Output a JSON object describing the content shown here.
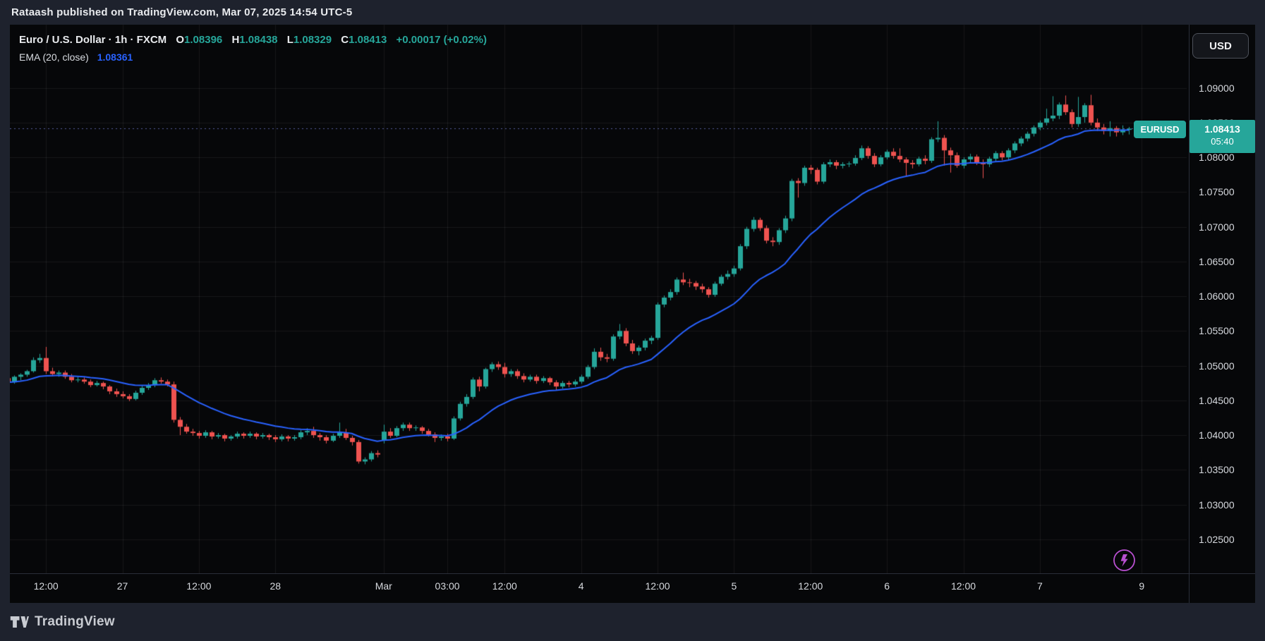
{
  "header": {
    "publish_text": "Rataash published on TradingView.com, Mar 07, 2025 14:54 UTC-5"
  },
  "legend": {
    "title": "Euro / U.S. Dollar · 1h · FXCM",
    "ohlc": {
      "o_label": "O",
      "o": "1.08396",
      "h_label": "H",
      "h": "1.08438",
      "l_label": "L",
      "l": "1.08329",
      "c_label": "C",
      "c": "1.08413",
      "change": "+0.00017 (+0.02%)"
    },
    "ema": {
      "label": "EMA (20, close)",
      "value": "1.08361"
    }
  },
  "price_axis": {
    "currency_button": "USD",
    "ticks": [
      "1.09000",
      "1.08500",
      "1.08000",
      "1.07500",
      "1.07000",
      "1.06500",
      "1.06000",
      "1.05500",
      "1.05000",
      "1.04500",
      "1.04000",
      "1.03500",
      "1.03000",
      "1.02500"
    ],
    "symbol_badge": "EURUSD",
    "last_price": "1.08413",
    "countdown": "05:40"
  },
  "time_axis": {
    "ticks": [
      {
        "label": "12:00",
        "bar": 6
      },
      {
        "label": "27",
        "bar": 18
      },
      {
        "label": "12:00",
        "bar": 30
      },
      {
        "label": "28",
        "bar": 42
      },
      {
        "label": "Mar",
        "bar": 59
      },
      {
        "label": "03:00",
        "bar": 69
      },
      {
        "label": "12:00",
        "bar": 78
      },
      {
        "label": "4",
        "bar": 90
      },
      {
        "label": "12:00",
        "bar": 102
      },
      {
        "label": "5",
        "bar": 114
      },
      {
        "label": "12:00",
        "bar": 126
      },
      {
        "label": "6",
        "bar": 138
      },
      {
        "label": "12:00",
        "bar": 150
      },
      {
        "label": "7",
        "bar": 162
      },
      {
        "label": "9",
        "bar": 178
      }
    ]
  },
  "footer": {
    "brand": "TradingView"
  },
  "colors": {
    "up": "#26a69a",
    "down": "#ef5350",
    "ema_line": "#2962ff",
    "grid": "rgba(255,255,255,0.07)",
    "price_line": "#5a5f9e",
    "badge": "#26a69a",
    "flash_icon": "#b84fd0"
  },
  "chart_data": {
    "type": "candlestick",
    "symbol": "EURUSD",
    "title": "Euro / U.S. Dollar",
    "interval": "1h",
    "exchange": "FXCM",
    "timezone": "UTC-5",
    "first_bar_time": "Feb 26 06:00",
    "last_bar_time": "Mar 7 14:00",
    "sessions": [
      "Feb 26 06:00-23:00",
      "Feb 27 00:00-23:00",
      "Feb 28 00:00-16:00",
      "Mar 2 17:00-23:00",
      "Mar 3 00:00-23:00",
      "Mar 4 00:00-23:00",
      "Mar 5 00:00-23:00",
      "Mar 6 00:00-23:00",
      "Mar 7 00:00-14:00"
    ],
    "visible_price_range": [
      1.0201,
      1.0991
    ],
    "price_grid_step": 0.005,
    "last_close": 1.08413,
    "ema_period": 20,
    "ema_last_value": 1.08361,
    "candles": [
      [
        1.0482,
        1.0485,
        1.0471,
        1.0476
      ],
      [
        1.0476,
        1.0486,
        1.0474,
        1.0484
      ],
      [
        1.0484,
        1.0489,
        1.0479,
        1.0487
      ],
      [
        1.0487,
        1.0494,
        1.0484,
        1.0492
      ],
      [
        1.0492,
        1.0512,
        1.049,
        1.0508
      ],
      [
        1.0508,
        1.0517,
        1.0504,
        1.0511
      ],
      [
        1.0511,
        1.0527,
        1.0488,
        1.0492
      ],
      [
        1.0492,
        1.0497,
        1.0485,
        1.0488
      ],
      [
        1.0488,
        1.0493,
        1.0484,
        1.049
      ],
      [
        1.049,
        1.0493,
        1.0481,
        1.0484
      ],
      [
        1.0484,
        1.0488,
        1.0476,
        1.0479
      ],
      [
        1.0479,
        1.0484,
        1.0476,
        1.048
      ],
      [
        1.048,
        1.0483,
        1.0474,
        1.0477
      ],
      [
        1.0477,
        1.048,
        1.0469,
        1.0472
      ],
      [
        1.0472,
        1.0478,
        1.047,
        1.0475
      ],
      [
        1.0475,
        1.0477,
        1.0466,
        1.047
      ],
      [
        1.047,
        1.0472,
        1.0459,
        1.0463
      ],
      [
        1.0463,
        1.0467,
        1.0455,
        1.0459
      ],
      [
        1.0459,
        1.0463,
        1.0453,
        1.0456
      ],
      [
        1.0456,
        1.0459,
        1.0449,
        1.0452
      ],
      [
        1.0452,
        1.0464,
        1.045,
        1.0461
      ],
      [
        1.0461,
        1.0471,
        1.0458,
        1.0468
      ],
      [
        1.0468,
        1.0475,
        1.0465,
        1.0472
      ],
      [
        1.0472,
        1.0482,
        1.0469,
        1.0479
      ],
      [
        1.0479,
        1.0483,
        1.0474,
        1.0477
      ],
      [
        1.0477,
        1.048,
        1.047,
        1.0473
      ],
      [
        1.0473,
        1.0477,
        1.0418,
        1.0422
      ],
      [
        1.0422,
        1.0426,
        1.04,
        1.0412
      ],
      [
        1.0412,
        1.0416,
        1.0402,
        1.0405
      ],
      [
        1.0405,
        1.0409,
        1.0399,
        1.0403
      ],
      [
        1.0403,
        1.0406,
        1.0395,
        1.0399
      ],
      [
        1.0399,
        1.0407,
        1.0396,
        1.0404
      ],
      [
        1.0404,
        1.0406,
        1.0394,
        1.0398
      ],
      [
        1.0398,
        1.0403,
        1.0395,
        1.04
      ],
      [
        1.04,
        1.0402,
        1.0391,
        1.0395
      ],
      [
        1.0395,
        1.04,
        1.0392,
        1.0398
      ],
      [
        1.0398,
        1.0405,
        1.0395,
        1.0402
      ],
      [
        1.0402,
        1.0404,
        1.0395,
        1.0399
      ],
      [
        1.0399,
        1.0405,
        1.0396,
        1.0402
      ],
      [
        1.0402,
        1.0404,
        1.0394,
        1.0398
      ],
      [
        1.0398,
        1.0403,
        1.0395,
        1.04
      ],
      [
        1.04,
        1.0402,
        1.0393,
        1.0397
      ],
      [
        1.0397,
        1.04,
        1.039,
        1.0394
      ],
      [
        1.0394,
        1.0401,
        1.0391,
        1.0398
      ],
      [
        1.0398,
        1.04,
        1.0391,
        1.0395
      ],
      [
        1.0395,
        1.04,
        1.0392,
        1.0397
      ],
      [
        1.0397,
        1.0407,
        1.0394,
        1.0404
      ],
      [
        1.0404,
        1.041,
        1.04,
        1.0406
      ],
      [
        1.0406,
        1.0412,
        1.0396,
        1.04
      ],
      [
        1.04,
        1.0403,
        1.0392,
        1.0397
      ],
      [
        1.0397,
        1.04,
        1.0388,
        1.0392
      ],
      [
        1.0392,
        1.0402,
        1.039,
        1.0399
      ],
      [
        1.0399,
        1.0418,
        1.0396,
        1.0404
      ],
      [
        1.0404,
        1.0409,
        1.0393,
        1.0396
      ],
      [
        1.0396,
        1.0399,
        1.0385,
        1.039
      ],
      [
        1.039,
        1.0393,
        1.0359,
        1.0362
      ],
      [
        1.0362,
        1.0368,
        1.0358,
        1.0365
      ],
      [
        1.0365,
        1.0377,
        1.0362,
        1.0374
      ],
      [
        1.0374,
        1.0378,
        1.0368,
        1.0372
      ],
      [
        1.0392,
        1.0415,
        1.0388,
        1.0405
      ],
      [
        1.0405,
        1.041,
        1.0396,
        1.0399
      ],
      [
        1.0399,
        1.0413,
        1.0397,
        1.041
      ],
      [
        1.041,
        1.0418,
        1.0406,
        1.0415
      ],
      [
        1.0415,
        1.0418,
        1.0406,
        1.041
      ],
      [
        1.041,
        1.0414,
        1.0406,
        1.0411
      ],
      [
        1.0411,
        1.0413,
        1.0402,
        1.0406
      ],
      [
        1.0406,
        1.0409,
        1.0398,
        1.0401
      ],
      [
        1.0401,
        1.0404,
        1.039,
        1.0396
      ],
      [
        1.0396,
        1.0401,
        1.0392,
        1.0398
      ],
      [
        1.0398,
        1.0402,
        1.0391,
        1.0395
      ],
      [
        1.0395,
        1.0427,
        1.0393,
        1.0424
      ],
      [
        1.0424,
        1.0448,
        1.0421,
        1.0445
      ],
      [
        1.0445,
        1.0459,
        1.0441,
        1.0455
      ],
      [
        1.0455,
        1.0483,
        1.0452,
        1.048
      ],
      [
        1.048,
        1.0484,
        1.0463,
        1.047
      ],
      [
        1.047,
        1.0497,
        1.0467,
        1.0495
      ],
      [
        1.0495,
        1.0505,
        1.0491,
        1.0502
      ],
      [
        1.0502,
        1.0506,
        1.0494,
        1.0498
      ],
      [
        1.0498,
        1.0504,
        1.0483,
        1.0488
      ],
      [
        1.0488,
        1.0495,
        1.0484,
        1.0492
      ],
      [
        1.0492,
        1.0495,
        1.0481,
        1.0485
      ],
      [
        1.0485,
        1.0489,
        1.0476,
        1.048
      ],
      [
        1.048,
        1.0487,
        1.0477,
        1.0484
      ],
      [
        1.0484,
        1.0487,
        1.0474,
        1.0478
      ],
      [
        1.0478,
        1.0485,
        1.0475,
        1.0482
      ],
      [
        1.0482,
        1.0484,
        1.0472,
        1.0476
      ],
      [
        1.0476,
        1.0479,
        1.0465,
        1.047
      ],
      [
        1.047,
        1.0478,
        1.0467,
        1.0475
      ],
      [
        1.0475,
        1.0478,
        1.0469,
        1.0473
      ],
      [
        1.0473,
        1.048,
        1.047,
        1.0477
      ],
      [
        1.0477,
        1.0487,
        1.0474,
        1.0484
      ],
      [
        1.0484,
        1.0501,
        1.0481,
        1.0498
      ],
      [
        1.0498,
        1.0525,
        1.0495,
        1.052
      ],
      [
        1.052,
        1.0526,
        1.0507,
        1.0512
      ],
      [
        1.0512,
        1.0517,
        1.0505,
        1.051
      ],
      [
        1.051,
        1.0545,
        1.0507,
        1.0542
      ],
      [
        1.0542,
        1.056,
        1.0538,
        1.055
      ],
      [
        1.055,
        1.0554,
        1.0528,
        1.0532
      ],
      [
        1.0532,
        1.0537,
        1.0517,
        1.0521
      ],
      [
        1.0521,
        1.0529,
        1.0515,
        1.0526
      ],
      [
        1.0526,
        1.0539,
        1.0522,
        1.0536
      ],
      [
        1.0536,
        1.0543,
        1.0531,
        1.054
      ],
      [
        1.054,
        1.0591,
        1.0537,
        1.0588
      ],
      [
        1.0588,
        1.0601,
        1.0584,
        1.0598
      ],
      [
        1.0598,
        1.061,
        1.0594,
        1.0606
      ],
      [
        1.0606,
        1.0627,
        1.0602,
        1.0624
      ],
      [
        1.0624,
        1.0634,
        1.0616,
        1.062
      ],
      [
        1.062,
        1.0625,
        1.0613,
        1.0619
      ],
      [
        1.0619,
        1.0622,
        1.0609,
        1.0614
      ],
      [
        1.0614,
        1.0618,
        1.0605,
        1.061
      ],
      [
        1.061,
        1.0613,
        1.0598,
        1.0602
      ],
      [
        1.0602,
        1.0621,
        1.0599,
        1.0618
      ],
      [
        1.0618,
        1.0631,
        1.0615,
        1.0628
      ],
      [
        1.0628,
        1.0637,
        1.0624,
        1.0632
      ],
      [
        1.0632,
        1.0644,
        1.0628,
        1.064
      ],
      [
        1.064,
        1.0675,
        1.0637,
        1.0672
      ],
      [
        1.0672,
        1.07,
        1.0668,
        1.0697
      ],
      [
        1.0697,
        1.0714,
        1.0693,
        1.071
      ],
      [
        1.071,
        1.0713,
        1.0694,
        1.0698
      ],
      [
        1.0698,
        1.0702,
        1.0676,
        1.068
      ],
      [
        1.068,
        1.0685,
        1.0672,
        1.0678
      ],
      [
        1.0678,
        1.0698,
        1.0674,
        1.0695
      ],
      [
        1.0695,
        1.0716,
        1.0691,
        1.0712
      ],
      [
        1.0712,
        1.0769,
        1.0708,
        1.0766
      ],
      [
        1.0766,
        1.077,
        1.0742,
        1.0763
      ],
      [
        1.0763,
        1.0788,
        1.0759,
        1.0785
      ],
      [
        1.0785,
        1.0789,
        1.0776,
        1.0782
      ],
      [
        1.0782,
        1.0785,
        1.0761,
        1.0765
      ],
      [
        1.0765,
        1.0793,
        1.0762,
        1.079
      ],
      [
        1.079,
        1.0797,
        1.0786,
        1.0793
      ],
      [
        1.0793,
        1.0796,
        1.0783,
        1.0788
      ],
      [
        1.0788,
        1.0793,
        1.0784,
        1.079
      ],
      [
        1.079,
        1.0794,
        1.0786,
        1.0791
      ],
      [
        1.0791,
        1.0803,
        1.0788,
        1.0799
      ],
      [
        1.0799,
        1.0817,
        1.0796,
        1.0813
      ],
      [
        1.0813,
        1.0816,
        1.0798,
        1.0802
      ],
      [
        1.0802,
        1.0806,
        1.0786,
        1.079
      ],
      [
        1.079,
        1.0803,
        1.0787,
        1.08
      ],
      [
        1.08,
        1.0811,
        1.0797,
        1.0808
      ],
      [
        1.0808,
        1.0813,
        1.0798,
        1.0802
      ],
      [
        1.0802,
        1.0813,
        1.0793,
        1.0797
      ],
      [
        1.0797,
        1.08,
        1.0773,
        1.0792
      ],
      [
        1.0792,
        1.0796,
        1.0784,
        1.079
      ],
      [
        1.079,
        1.0801,
        1.0787,
        1.0798
      ],
      [
        1.0798,
        1.0803,
        1.079,
        1.0795
      ],
      [
        1.0795,
        1.0829,
        1.0792,
        1.0826
      ],
      [
        1.0826,
        1.0852,
        1.0822,
        1.0828
      ],
      [
        1.0828,
        1.0832,
        1.0788,
        1.081
      ],
      [
        1.081,
        1.0814,
        1.0778,
        1.0803
      ],
      [
        1.0803,
        1.0807,
        1.0785,
        1.0788
      ],
      [
        1.0788,
        1.08,
        1.0784,
        1.0797
      ],
      [
        1.0797,
        1.0805,
        1.0793,
        1.0801
      ],
      [
        1.0801,
        1.0804,
        1.0789,
        1.0793
      ],
      [
        1.0793,
        1.0797,
        1.077,
        1.079
      ],
      [
        1.079,
        1.0801,
        1.0786,
        1.0798
      ],
      [
        1.0798,
        1.0809,
        1.0794,
        1.0806
      ],
      [
        1.0806,
        1.0809,
        1.0796,
        1.08
      ],
      [
        1.08,
        1.0813,
        1.0797,
        1.081
      ],
      [
        1.081,
        1.0823,
        1.0806,
        1.082
      ],
      [
        1.082,
        1.083,
        1.0816,
        1.0827
      ],
      [
        1.0827,
        1.0837,
        1.0823,
        1.0834
      ],
      [
        1.0834,
        1.0846,
        1.083,
        1.0843
      ],
      [
        1.0843,
        1.0853,
        1.0839,
        1.085
      ],
      [
        1.085,
        1.087,
        1.0846,
        1.0856
      ],
      [
        1.0856,
        1.0888,
        1.0852,
        1.086
      ],
      [
        1.086,
        1.0879,
        1.0855,
        1.0876
      ],
      [
        1.0876,
        1.0889,
        1.0861,
        1.0865
      ],
      [
        1.0865,
        1.0869,
        1.0843,
        1.0848
      ],
      [
        1.0848,
        1.0887,
        1.0844,
        1.0858
      ],
      [
        1.0858,
        1.0878,
        1.085,
        1.0875
      ],
      [
        1.0875,
        1.089,
        1.0846,
        1.085
      ],
      [
        1.085,
        1.0856,
        1.0838,
        1.0843
      ],
      [
        1.0843,
        1.0848,
        1.0833,
        1.0838
      ],
      [
        1.0838,
        1.0852,
        1.083,
        1.0842
      ],
      [
        1.0842,
        1.0845,
        1.083,
        1.0836
      ],
      [
        1.0836,
        1.0846,
        1.0832,
        1.084
      ],
      [
        1.08396,
        1.08438,
        1.08329,
        1.08413
      ]
    ]
  }
}
